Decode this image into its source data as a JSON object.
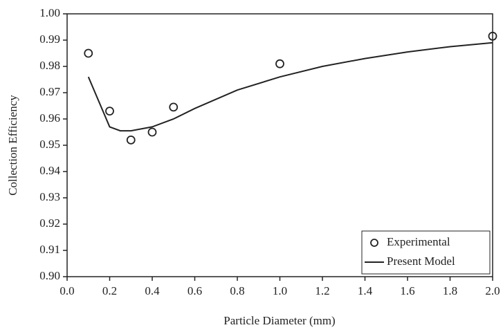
{
  "chart_data": {
    "type": "line",
    "xlabel": "Particle Diameter (mm)",
    "ylabel": "Collection Efficiency",
    "xlim": [
      0,
      2.0
    ],
    "ylim": [
      0.9,
      1.0
    ],
    "xticks": [
      {
        "value": 0,
        "label": "0.0"
      },
      0.2,
      0.4,
      0.6,
      0.8,
      {
        "value": 1,
        "label": "1.0"
      },
      1.2,
      1.4,
      1.6,
      1.8,
      {
        "value": 2,
        "label": "2.0"
      }
    ],
    "yticks": [
      {
        "value": 0.9,
        "label": "0.90"
      },
      0.91,
      0.92,
      0.93,
      0.94,
      0.95,
      0.96,
      0.97,
      0.98,
      0.99,
      {
        "value": 1.0,
        "label": "1.00"
      }
    ],
    "legend": "lower right",
    "series": [
      {
        "name": "Experimental",
        "color": "#222222",
        "style": "marker",
        "x": [
          0.1,
          0.2,
          0.3,
          0.4,
          0.5,
          1.0,
          2.0
        ],
        "values": [
          0.985,
          0.963,
          0.952,
          0.955,
          0.9645,
          0.981,
          0.9915
        ]
      },
      {
        "name": "Present Model",
        "color": "#222222",
        "style": "line",
        "x": [
          0.1,
          0.2,
          0.25,
          0.3,
          0.4,
          0.5,
          0.6,
          0.8,
          1.0,
          1.2,
          1.4,
          1.6,
          1.8,
          2.0
        ],
        "values": [
          0.976,
          0.957,
          0.9555,
          0.9555,
          0.957,
          0.96,
          0.964,
          0.971,
          0.976,
          0.98,
          0.983,
          0.9855,
          0.9875,
          0.989
        ]
      }
    ]
  }
}
